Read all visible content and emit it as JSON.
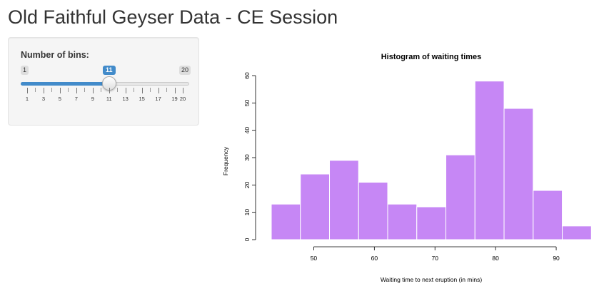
{
  "app": {
    "title": "Old Faithful Geyser Data - CE Session"
  },
  "sidebar": {
    "bins_slider": {
      "label": "Number of bins:",
      "min": 1,
      "max": 20,
      "value": 11,
      "min_label": "1",
      "max_label": "20",
      "value_label": "11",
      "tick_labels": [
        "1",
        "3",
        "5",
        "7",
        "9",
        "11",
        "13",
        "15",
        "17",
        "19",
        "20"
      ],
      "accent_color": "#428bca"
    }
  },
  "chart_data": {
    "type": "bar",
    "title": "Histogram of waiting times",
    "xlabel": "Waiting time to next eruption (in mins)",
    "ylabel": "Frequency",
    "bin_edges": [
      43.0,
      47.8,
      52.6,
      57.4,
      62.2,
      67.0,
      71.8,
      76.6,
      81.4,
      86.2,
      91.0,
      95.8
    ],
    "values": [
      13,
      24,
      29,
      21,
      13,
      12,
      31,
      58,
      48,
      18,
      5
    ],
    "xticks": [
      "50",
      "60",
      "70",
      "80",
      "90"
    ],
    "xtick_values": [
      50,
      60,
      70,
      80,
      90
    ],
    "yticks": [
      "0",
      "10",
      "20",
      "30",
      "40",
      "50",
      "60"
    ],
    "ytick_values": [
      0,
      10,
      20,
      30,
      40,
      50,
      60
    ],
    "xlim": [
      43,
      96
    ],
    "ylim": [
      0,
      60
    ],
    "bar_color": "#c687f5",
    "border_color": "#ffffff",
    "grid": false
  }
}
